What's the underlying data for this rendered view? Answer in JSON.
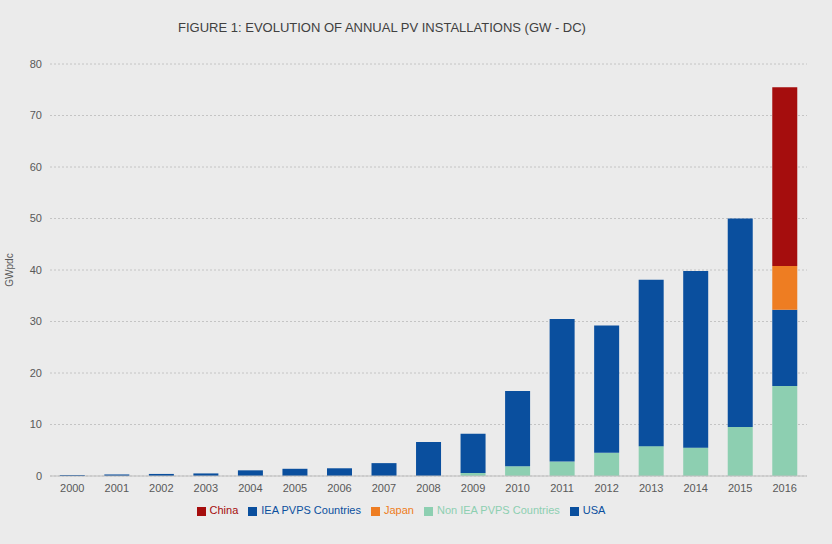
{
  "chart_data": {
    "type": "bar",
    "title": "FIGURE 1: EVOLUTION OF ANNUAL PV INSTALLATIONS (GW - DC)",
    "y_label": "GWpdc",
    "categories": [
      "2000",
      "2001",
      "2002",
      "2003",
      "2004",
      "2005",
      "2006",
      "2007",
      "2008",
      "2009",
      "2010",
      "2011",
      "2012",
      "2013",
      "2014",
      "2015",
      "2016"
    ],
    "series": [
      {
        "name": "Non IEA PVPS Countries",
        "color": "#8dcfb1",
        "values": [
          null,
          null,
          null,
          null,
          null,
          null,
          null,
          null,
          null,
          0.6,
          1.9,
          2.8,
          4.5,
          5.8,
          5.5,
          9.5,
          17.5
        ]
      },
      {
        "name": "IEA PVPS Countries",
        "color": "#0a4f9e",
        "values": [
          0.2,
          0.3,
          0.4,
          0.5,
          1.1,
          1.4,
          1.5,
          2.5,
          6.6,
          7.6,
          14.6,
          27.7,
          24.7,
          32.3,
          34.3,
          40.5,
          null
        ]
      },
      {
        "name": "USA",
        "color": "#0a4f9e",
        "values": [
          null,
          null,
          null,
          null,
          null,
          null,
          null,
          null,
          null,
          null,
          null,
          null,
          null,
          null,
          null,
          null,
          14.8
        ]
      },
      {
        "name": "Japan",
        "color": "#ee7d22",
        "values": [
          null,
          null,
          null,
          null,
          null,
          null,
          null,
          null,
          null,
          null,
          null,
          null,
          null,
          null,
          null,
          null,
          8.5
        ]
      },
      {
        "name": "China",
        "color": "#a50d0d",
        "values": [
          null,
          null,
          null,
          null,
          null,
          null,
          null,
          null,
          null,
          null,
          null,
          null,
          null,
          null,
          null,
          null,
          34.7
        ]
      }
    ],
    "ylim": [
      0,
      80
    ],
    "yticks": [
      0,
      10,
      20,
      30,
      40,
      50,
      60,
      70,
      80
    ],
    "stacked": true,
    "grid": true,
    "legend": "bottom"
  }
}
